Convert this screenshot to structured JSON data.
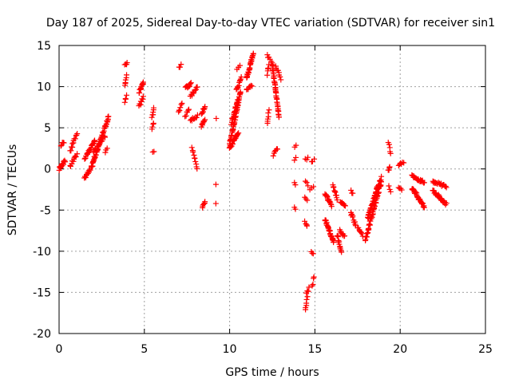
{
  "chart_data": {
    "type": "scatter",
    "title": "Day 187 of 2025, Sidereal Day-to-day VTEC variation (SDTVAR) for receiver sin1",
    "xlabel": "GPS time / hours",
    "ylabel": "SDTVAR / TECUs",
    "xlim": [
      0,
      25
    ],
    "ylim": [
      -20,
      15
    ],
    "xticks": [
      0,
      5,
      10,
      15,
      20,
      25
    ],
    "yticks": [
      -20,
      -15,
      -10,
      -5,
      0,
      5,
      10,
      15
    ],
    "grid": true,
    "marker": "+",
    "color": "#ff0000",
    "segments": [
      {
        "x0": 0.0,
        "x1": 0.35,
        "y0": 0.0,
        "y1": 1.0,
        "n": 14
      },
      {
        "x0": 0.1,
        "x1": 0.3,
        "y0": 2.8,
        "y1": 3.3,
        "n": 5
      },
      {
        "x0": 0.65,
        "x1": 1.05,
        "y0": 0.3,
        "y1": 1.8,
        "n": 10
      },
      {
        "x0": 0.65,
        "x1": 1.05,
        "y0": 2.2,
        "y1": 4.3,
        "n": 12
      },
      {
        "x0": 1.5,
        "x1": 1.95,
        "y0": -1.2,
        "y1": 0.4,
        "n": 14
      },
      {
        "x0": 1.5,
        "x1": 2.1,
        "y0": 1.2,
        "y1": 3.5,
        "n": 22
      },
      {
        "x0": 1.9,
        "x1": 2.9,
        "y0": 0.2,
        "y1": 6.3,
        "n": 50
      },
      {
        "x0": 2.0,
        "x1": 2.7,
        "y0": 2.0,
        "y1": 4.0,
        "n": 16
      },
      {
        "x0": 2.7,
        "x1": 2.8,
        "y0": 2.1,
        "y1": 2.5,
        "n": 3
      },
      {
        "x0": 3.85,
        "x1": 4.0,
        "y0": 12.5,
        "y1": 12.9,
        "n": 4
      },
      {
        "x0": 3.85,
        "x1": 3.95,
        "y0": 10.0,
        "y1": 11.5,
        "n": 6
      },
      {
        "x0": 3.85,
        "x1": 3.95,
        "y0": 8.2,
        "y1": 8.8,
        "n": 4
      },
      {
        "x0": 4.7,
        "x1": 4.95,
        "y0": 9.3,
        "y1": 10.5,
        "n": 14
      },
      {
        "x0": 4.7,
        "x1": 4.95,
        "y0": 7.6,
        "y1": 8.8,
        "n": 8
      },
      {
        "x0": 5.45,
        "x1": 5.55,
        "y0": 6.2,
        "y1": 7.4,
        "n": 6
      },
      {
        "x0": 5.45,
        "x1": 5.55,
        "y0": 4.9,
        "y1": 5.5,
        "n": 4
      },
      {
        "x0": 5.5,
        "x1": 5.55,
        "y0": 1.9,
        "y1": 2.1,
        "n": 2
      },
      {
        "x0": 7.05,
        "x1": 7.15,
        "y0": 12.3,
        "y1": 12.6,
        "n": 3
      },
      {
        "x0": 7.0,
        "x1": 7.2,
        "y0": 6.8,
        "y1": 7.9,
        "n": 6
      },
      {
        "x0": 7.4,
        "x1": 7.75,
        "y0": 9.8,
        "y1": 10.3,
        "n": 10
      },
      {
        "x0": 7.4,
        "x1": 7.6,
        "y0": 6.4,
        "y1": 7.4,
        "n": 6
      },
      {
        "x0": 7.7,
        "x1": 8.1,
        "y0": 8.8,
        "y1": 10.0,
        "n": 10
      },
      {
        "x0": 7.7,
        "x1": 8.1,
        "y0": 5.8,
        "y1": 6.5,
        "n": 10
      },
      {
        "x0": 7.8,
        "x1": 8.1,
        "y0": 2.5,
        "y1": 0.0,
        "n": 10
      },
      {
        "x0": 8.35,
        "x1": 8.55,
        "y0": 6.6,
        "y1": 7.7,
        "n": 8
      },
      {
        "x0": 8.35,
        "x1": 8.55,
        "y0": 5.2,
        "y1": 6.0,
        "n": 8
      },
      {
        "x0": 8.4,
        "x1": 8.55,
        "y0": -4.8,
        "y1": -4.0,
        "n": 6
      },
      {
        "x0": 9.2,
        "x1": 9.25,
        "y0": 6.0,
        "y1": 6.1,
        "n": 1
      },
      {
        "x0": 9.2,
        "x1": 9.25,
        "y0": -1.9,
        "y1": -2.0,
        "n": 1
      },
      {
        "x0": 9.2,
        "x1": 9.25,
        "y0": -4.3,
        "y1": -4.4,
        "n": 1
      },
      {
        "x0": 10.0,
        "x1": 10.65,
        "y0": 3.0,
        "y1": 9.5,
        "n": 45
      },
      {
        "x0": 10.0,
        "x1": 10.5,
        "y0": 2.5,
        "y1": 4.3,
        "n": 20
      },
      {
        "x0": 10.1,
        "x1": 10.5,
        "y0": 5.5,
        "y1": 8.5,
        "n": 20
      },
      {
        "x0": 10.4,
        "x1": 10.7,
        "y0": 9.5,
        "y1": 11.0,
        "n": 10
      },
      {
        "x0": 10.45,
        "x1": 10.6,
        "y0": 12.1,
        "y1": 12.6,
        "n": 3
      },
      {
        "x0": 11.0,
        "x1": 11.4,
        "y0": 11.0,
        "y1": 14.1,
        "n": 25
      },
      {
        "x0": 11.0,
        "x1": 11.3,
        "y0": 9.5,
        "y1": 10.2,
        "n": 8
      },
      {
        "x0": 12.2,
        "x1": 12.5,
        "y0": 13.8,
        "y1": 13.0,
        "n": 6
      },
      {
        "x0": 12.2,
        "x1": 12.3,
        "y0": 11.5,
        "y1": 12.7,
        "n": 5
      },
      {
        "x0": 12.2,
        "x1": 12.3,
        "y0": 5.5,
        "y1": 7.0,
        "n": 6
      },
      {
        "x0": 12.5,
        "x1": 12.9,
        "y0": 12.8,
        "y1": 6.2,
        "n": 40
      },
      {
        "x0": 12.7,
        "x1": 13.0,
        "y0": 12.6,
        "y1": 11.0,
        "n": 8
      },
      {
        "x0": 12.55,
        "x1": 12.8,
        "y0": 1.7,
        "y1": 2.5,
        "n": 6
      },
      {
        "x0": 13.8,
        "x1": 13.9,
        "y0": 2.7,
        "y1": 3.0,
        "n": 2
      },
      {
        "x0": 13.8,
        "x1": 13.9,
        "y0": 1.0,
        "y1": 1.4,
        "n": 2
      },
      {
        "x0": 13.8,
        "x1": 13.85,
        "y0": -1.5,
        "y1": -1.9,
        "n": 2
      },
      {
        "x0": 13.8,
        "x1": 13.85,
        "y0": -4.6,
        "y1": -5.0,
        "n": 2
      },
      {
        "x0": 14.45,
        "x1": 14.6,
        "y0": 1.1,
        "y1": 1.3,
        "n": 3
      },
      {
        "x0": 14.45,
        "x1": 14.6,
        "y0": -1.4,
        "y1": -2.0,
        "n": 3
      },
      {
        "x0": 14.4,
        "x1": 14.55,
        "y0": -3.6,
        "y1": -3.9,
        "n": 3
      },
      {
        "x0": 14.4,
        "x1": 14.55,
        "y0": -6.3,
        "y1": -7.0,
        "n": 4
      },
      {
        "x0": 14.45,
        "x1": 14.55,
        "y0": -17.2,
        "y1": -15.6,
        "n": 6
      },
      {
        "x0": 14.5,
        "x1": 14.65,
        "y0": -15.2,
        "y1": -14.5,
        "n": 4
      },
      {
        "x0": 14.7,
        "x1": 14.9,
        "y0": -2.6,
        "y1": -2.2,
        "n": 3
      },
      {
        "x0": 14.8,
        "x1": 14.95,
        "y0": 0.9,
        "y1": 1.2,
        "n": 3
      },
      {
        "x0": 14.8,
        "x1": 14.9,
        "y0": -10.0,
        "y1": -10.4,
        "n": 3
      },
      {
        "x0": 14.85,
        "x1": 14.95,
        "y0": -14.3,
        "y1": -13.0,
        "n": 4
      },
      {
        "x0": 15.6,
        "x1": 16.0,
        "y0": -3.0,
        "y1": -4.5,
        "n": 16
      },
      {
        "x0": 15.6,
        "x1": 16.1,
        "y0": -6.1,
        "y1": -8.9,
        "n": 28
      },
      {
        "x0": 16.05,
        "x1": 16.3,
        "y0": -1.9,
        "y1": -3.8,
        "n": 10
      },
      {
        "x0": 16.3,
        "x1": 16.55,
        "y0": -8.0,
        "y1": -10.2,
        "n": 12
      },
      {
        "x0": 16.45,
        "x1": 16.75,
        "y0": -7.5,
        "y1": -8.2,
        "n": 8
      },
      {
        "x0": 16.5,
        "x1": 16.8,
        "y0": -4.0,
        "y1": -4.6,
        "n": 8
      },
      {
        "x0": 17.1,
        "x1": 17.4,
        "y0": -5.3,
        "y1": -6.8,
        "n": 10
      },
      {
        "x0": 17.1,
        "x1": 17.2,
        "y0": -2.6,
        "y1": -3.1,
        "n": 3
      },
      {
        "x0": 17.5,
        "x1": 17.8,
        "y0": -7.0,
        "y1": -8.2,
        "n": 8
      },
      {
        "x0": 17.95,
        "x1": 18.9,
        "y0": -8.7,
        "y1": -1.5,
        "n": 50
      },
      {
        "x0": 18.1,
        "x1": 18.7,
        "y0": -6.0,
        "y1": -2.0,
        "n": 30
      },
      {
        "x0": 18.5,
        "x1": 18.9,
        "y0": -3.5,
        "y1": -1.0,
        "n": 14
      },
      {
        "x0": 19.3,
        "x1": 19.45,
        "y0": 3.2,
        "y1": 1.9,
        "n": 5
      },
      {
        "x0": 19.3,
        "x1": 19.4,
        "y0": -0.3,
        "y1": 0.4,
        "n": 4
      },
      {
        "x0": 19.35,
        "x1": 19.45,
        "y0": -2.0,
        "y1": -2.7,
        "n": 3
      },
      {
        "x0": 19.9,
        "x1": 20.2,
        "y0": 0.4,
        "y1": 0.8,
        "n": 6
      },
      {
        "x0": 19.9,
        "x1": 20.1,
        "y0": -2.1,
        "y1": -2.7,
        "n": 4
      },
      {
        "x0": 20.7,
        "x1": 21.4,
        "y0": -0.9,
        "y1": -1.6,
        "n": 20
      },
      {
        "x0": 20.7,
        "x1": 21.4,
        "y0": -2.3,
        "y1": -4.6,
        "n": 30
      },
      {
        "x0": 21.9,
        "x1": 22.7,
        "y0": -1.5,
        "y1": -2.2,
        "n": 20
      },
      {
        "x0": 21.9,
        "x1": 22.7,
        "y0": -2.6,
        "y1": -4.3,
        "n": 30
      }
    ]
  }
}
